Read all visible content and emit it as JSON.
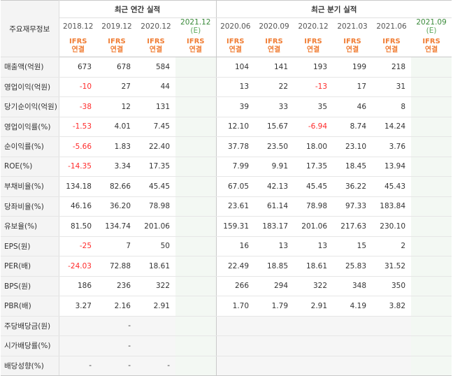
{
  "header": {
    "label": "주요재무정보",
    "annual_title": "최근 연간 실적",
    "quarter_title": "최근 분기 실적",
    "ifrs_line1": "IFRS",
    "ifrs_line2": "연결",
    "annual_periods": [
      "2018.12",
      "2019.12",
      "2020.12",
      "2021.12"
    ],
    "quarter_periods": [
      "2020.06",
      "2020.09",
      "2020.12",
      "2021.03",
      "2021.06",
      "2021.09"
    ],
    "est_mark": "(E)"
  },
  "rows": [
    {
      "label": "매출액(억원)",
      "annual": [
        "673",
        "678",
        "584",
        ""
      ],
      "quarter": [
        "104",
        "141",
        "193",
        "199",
        "218",
        ""
      ]
    },
    {
      "label": "영업이익(억원)",
      "annual": [
        "-10",
        "27",
        "44",
        ""
      ],
      "quarter": [
        "13",
        "22",
        "-13",
        "17",
        "31",
        ""
      ]
    },
    {
      "label": "당기순이익(억원)",
      "annual": [
        "-38",
        "12",
        "131",
        ""
      ],
      "quarter": [
        "39",
        "33",
        "35",
        "46",
        "8",
        ""
      ]
    },
    {
      "label": "영업이익률(%)",
      "annual": [
        "-1.53",
        "4.01",
        "7.45",
        ""
      ],
      "quarter": [
        "12.10",
        "15.67",
        "-6.94",
        "8.74",
        "14.24",
        ""
      ]
    },
    {
      "label": "순이익률(%)",
      "annual": [
        "-5.66",
        "1.83",
        "22.40",
        ""
      ],
      "quarter": [
        "37.78",
        "23.50",
        "18.00",
        "23.10",
        "3.76",
        ""
      ]
    },
    {
      "label": "ROE(%)",
      "annual": [
        "-14.35",
        "3.34",
        "17.35",
        ""
      ],
      "quarter": [
        "7.99",
        "9.91",
        "17.35",
        "18.45",
        "13.94",
        ""
      ]
    },
    {
      "label": "부채비율(%)",
      "annual": [
        "134.18",
        "82.66",
        "45.45",
        ""
      ],
      "quarter": [
        "67.05",
        "42.13",
        "45.45",
        "36.22",
        "45.43",
        ""
      ]
    },
    {
      "label": "당좌비율(%)",
      "annual": [
        "46.16",
        "36.20",
        "78.98",
        ""
      ],
      "quarter": [
        "23.61",
        "61.14",
        "78.98",
        "97.33",
        "183.84",
        ""
      ]
    },
    {
      "label": "유보율(%)",
      "annual": [
        "81.50",
        "134.74",
        "201.06",
        ""
      ],
      "quarter": [
        "159.31",
        "183.17",
        "201.06",
        "217.63",
        "230.10",
        ""
      ]
    },
    {
      "label": "EPS(원)",
      "annual": [
        "-25",
        "7",
        "50",
        ""
      ],
      "quarter": [
        "16",
        "13",
        "13",
        "15",
        "2",
        ""
      ]
    },
    {
      "label": "PER(배)",
      "annual": [
        "-24.03",
        "72.88",
        "18.61",
        ""
      ],
      "quarter": [
        "22.49",
        "18.85",
        "18.61",
        "25.83",
        "31.52",
        ""
      ]
    },
    {
      "label": "BPS(원)",
      "annual": [
        "186",
        "236",
        "322",
        ""
      ],
      "quarter": [
        "266",
        "294",
        "322",
        "348",
        "350",
        ""
      ]
    },
    {
      "label": "PBR(배)",
      "annual": [
        "3.27",
        "2.16",
        "2.91",
        ""
      ],
      "quarter": [
        "1.70",
        "1.79",
        "2.91",
        "4.19",
        "3.82",
        ""
      ]
    },
    {
      "label": "주당배당금(원)",
      "annual": [
        "",
        "-",
        "",
        ""
      ],
      "quarter": [
        "",
        "",
        "",
        "",
        "",
        ""
      ]
    },
    {
      "label": "시가배당률(%)",
      "annual": [
        "",
        "-",
        "",
        ""
      ],
      "quarter": [
        "",
        "",
        "",
        "",
        "",
        ""
      ]
    },
    {
      "label": "배당성향(%)",
      "annual": [
        "-",
        "-",
        "-",
        ""
      ],
      "quarter": [
        "",
        "",
        "",
        "",
        "",
        ""
      ]
    }
  ],
  "colors": {
    "negative": "#ff2a2a",
    "ifrs": "#f07d34",
    "estimate": "#3a8a3a"
  }
}
